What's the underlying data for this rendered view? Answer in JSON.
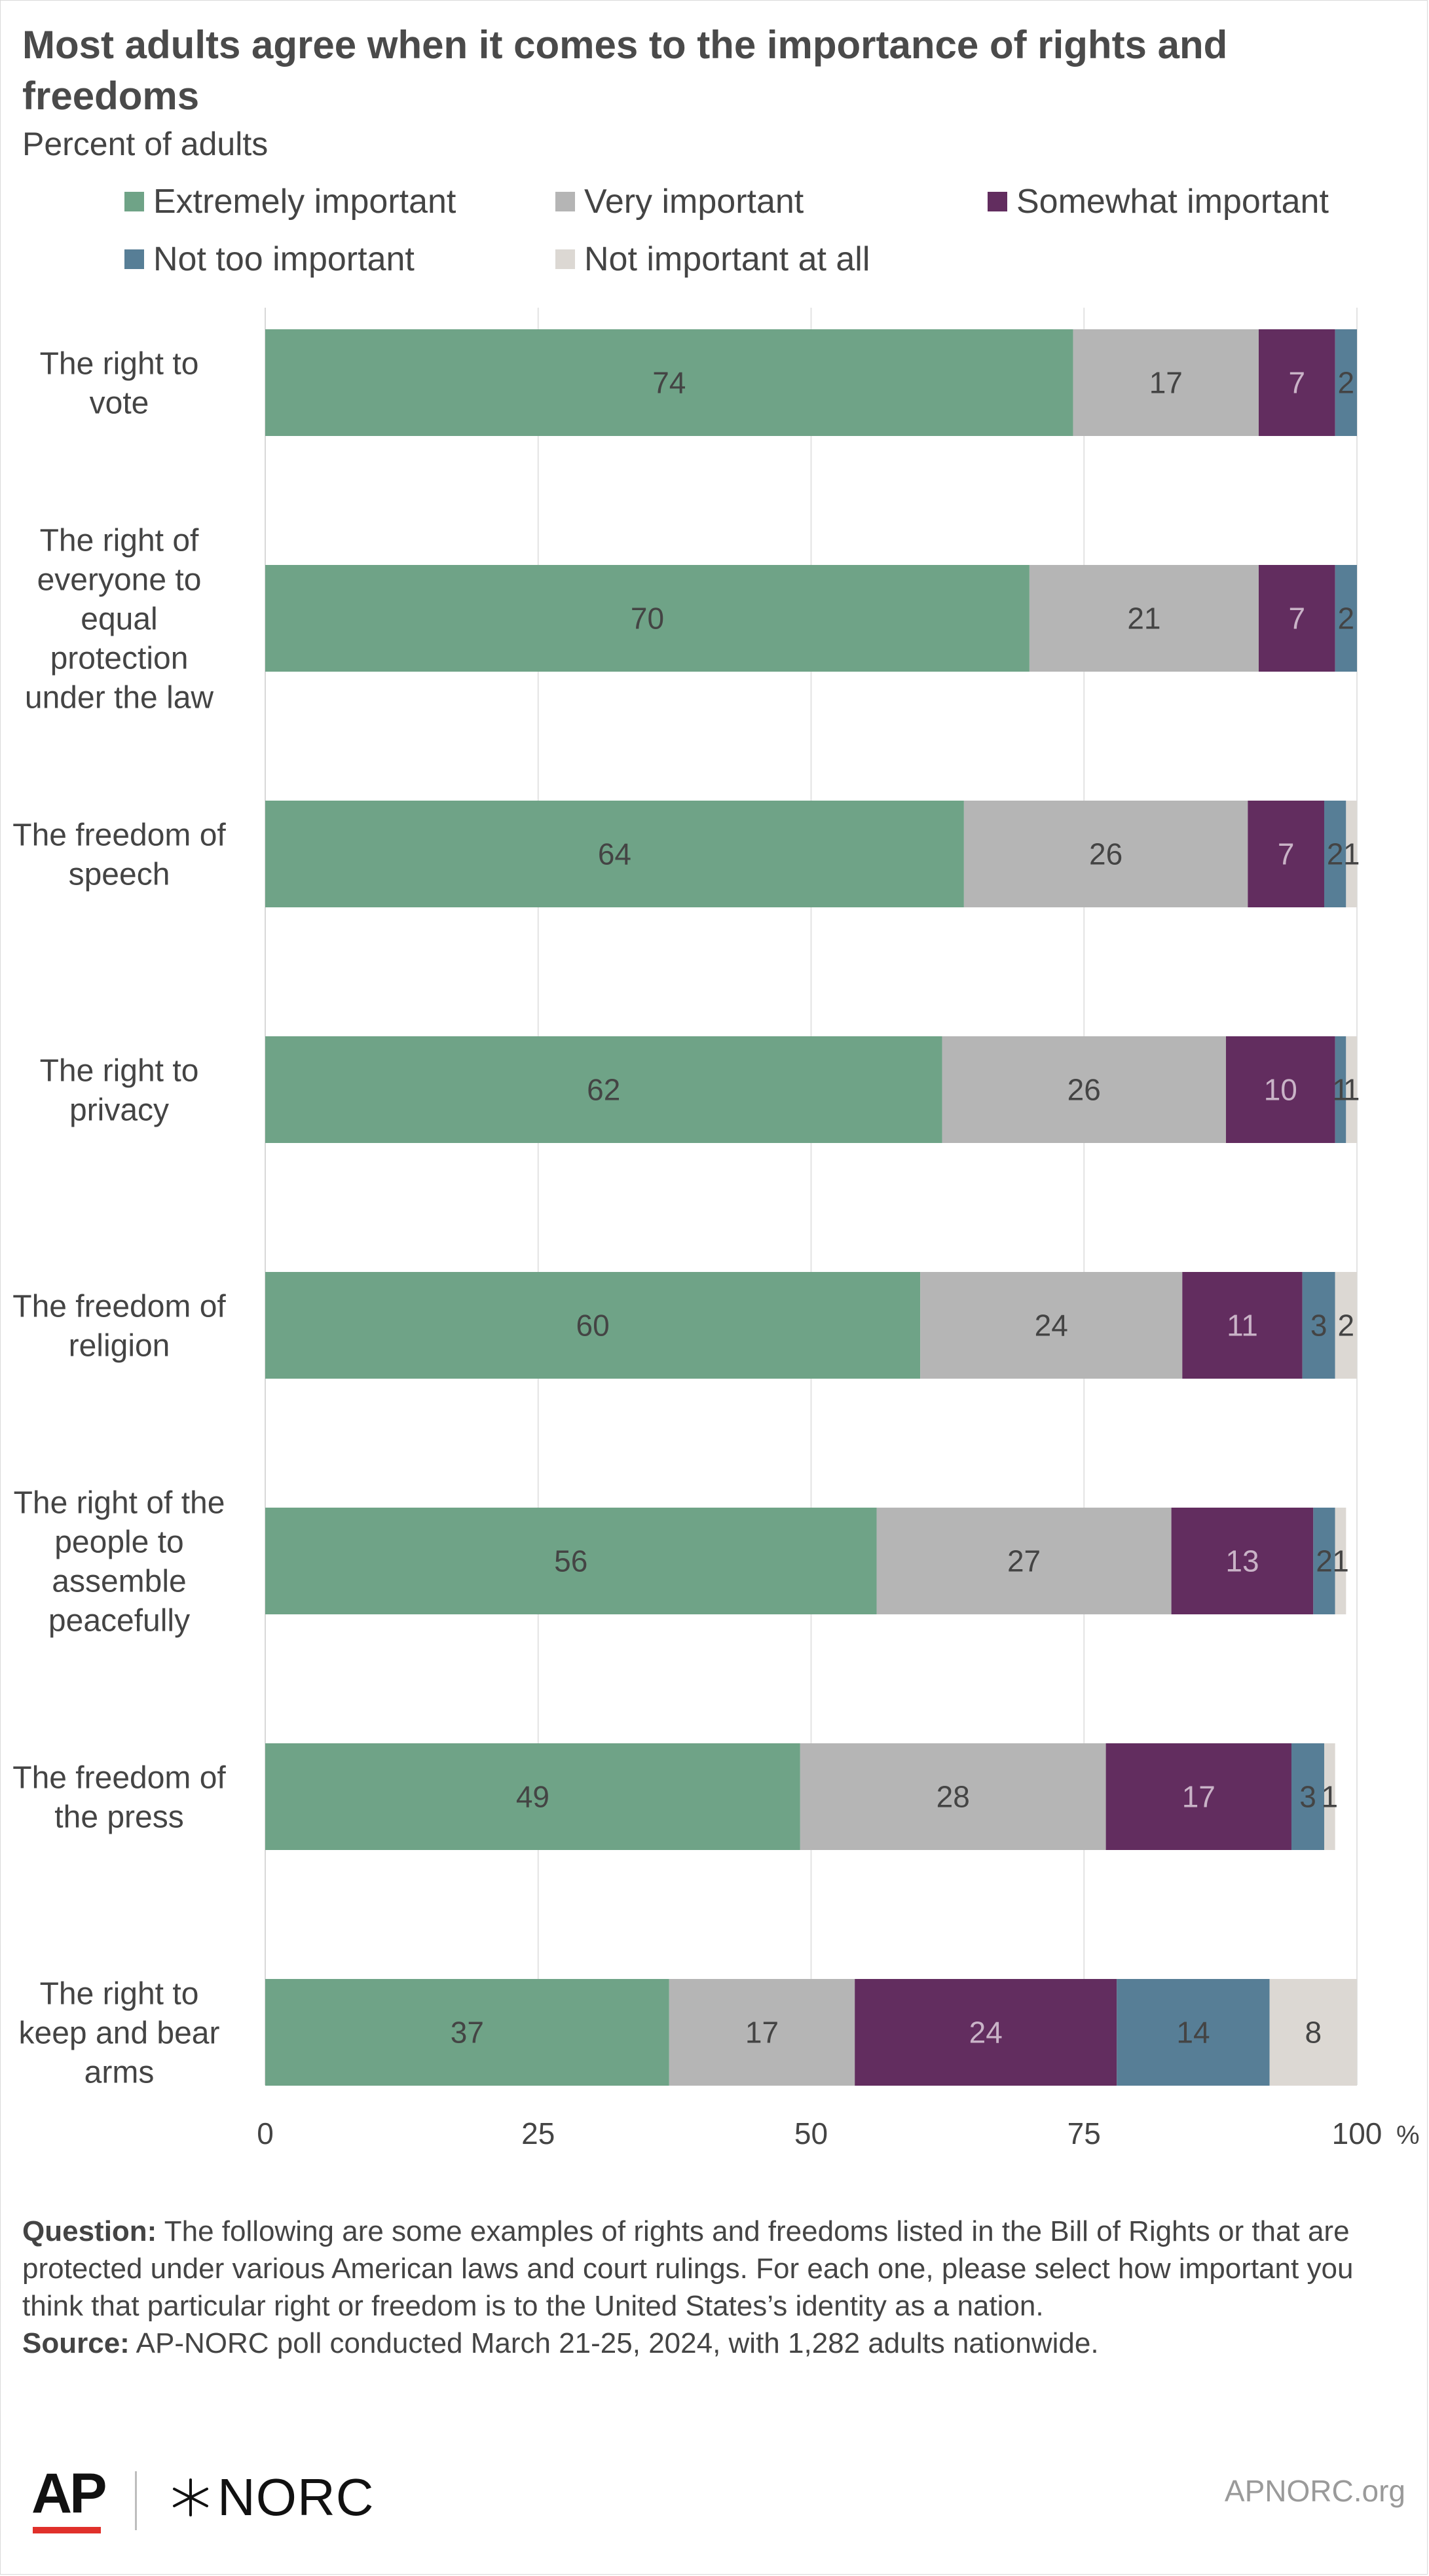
{
  "title": "Most adults agree when it comes to the importance of rights and freedoms",
  "subtitle": "Percent of adults",
  "legend": [
    {
      "label": "Extremely important",
      "color": "#6fa387"
    },
    {
      "label": "Very important",
      "color": "#b5b5b5"
    },
    {
      "label": "Somewhat important",
      "color": "#622d5f"
    },
    {
      "label": "Not too important",
      "color": "#577e96"
    },
    {
      "label": "Not important at all",
      "color": "#dcd8d3"
    }
  ],
  "chart_data": {
    "type": "bar",
    "orientation": "horizontal",
    "stacked": true,
    "title": "Most adults agree when it comes to the importance of rights and freedoms",
    "subtitle": "Percent of adults",
    "categories": [
      "The right to vote",
      "The right of everyone to equal protection under the law",
      "The freedom of speech",
      "The right to privacy",
      "The freedom of religion",
      "The right of the people to assemble peacefully",
      "The freedom of the press",
      "The right to keep and bear arms"
    ],
    "category_lines": [
      [
        "The right to",
        "vote"
      ],
      [
        "The right of",
        "everyone to",
        "equal",
        "protection",
        "under the law"
      ],
      [
        "The freedom of",
        "speech"
      ],
      [
        "The right to",
        "privacy"
      ],
      [
        "The freedom of",
        "religion"
      ],
      [
        "The right of the",
        "people to",
        "assemble",
        "peacefully"
      ],
      [
        "The freedom of",
        "the press"
      ],
      [
        "The right to",
        "keep and bear",
        "arms"
      ]
    ],
    "series": [
      {
        "name": "Extremely important",
        "color": "#6fa387",
        "values": [
          74,
          70,
          64,
          62,
          60,
          56,
          49,
          37
        ]
      },
      {
        "name": "Very important",
        "color": "#b5b5b5",
        "values": [
          17,
          21,
          26,
          26,
          24,
          27,
          28,
          17
        ]
      },
      {
        "name": "Somewhat important",
        "color": "#622d5f",
        "values": [
          7,
          7,
          7,
          10,
          11,
          13,
          17,
          24
        ]
      },
      {
        "name": "Not too important",
        "color": "#577e96",
        "values": [
          2,
          2,
          2,
          1,
          3,
          2,
          3,
          14
        ]
      },
      {
        "name": "Not important at all",
        "color": "#dcd8d3",
        "values": [
          0,
          0,
          1,
          1,
          2,
          1,
          1,
          8
        ]
      }
    ],
    "xlim": [
      0,
      100
    ],
    "xticks": [
      0,
      25,
      50,
      75,
      100
    ],
    "x_unit": "%",
    "grid": true,
    "legend_position": "top"
  },
  "notes": {
    "question_label": "Question:",
    "question_text": " The following are some examples of rights and freedoms listed in the Bill of Rights or that are protected under various American laws and court rulings. For each one, please select how important you think that particular right or freedom is to the United States’s identity as a nation.",
    "source_label": "Source:",
    "source_text": " AP-NORC poll conducted March 21-25, 2024, with 1,282 adults nationwide."
  },
  "footer": {
    "ap_logo": "AP",
    "norc_logo": "NORC",
    "site": "APNORC.org"
  }
}
